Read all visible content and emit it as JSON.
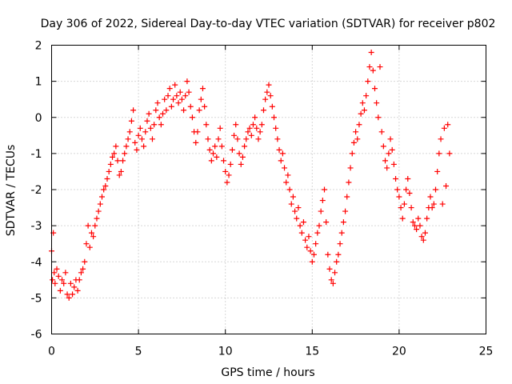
{
  "chart_data": {
    "type": "scatter",
    "title": "Day 306 of 2022, Sidereal Day-to-day VTEC variation (SDTVAR) for receiver p802",
    "xlabel": "GPS time / hours",
    "ylabel": "SDTVAR / TECUs",
    "xlim": [
      0,
      25
    ],
    "ylim": [
      -6,
      2
    ],
    "xticks": [
      "0",
      "5",
      "10",
      "15",
      "20",
      "25"
    ],
    "yticks": [
      "-6",
      "-5",
      "-4",
      "-3",
      "-2",
      "-1",
      "0",
      "1",
      "2"
    ],
    "grid": true,
    "marker": "+",
    "color": "#ff0000",
    "series": [
      {
        "name": "p802",
        "points": [
          [
            0.0,
            -3.7
          ],
          [
            0.05,
            -4.5
          ],
          [
            0.1,
            -3.2
          ],
          [
            0.15,
            -4.3
          ],
          [
            0.2,
            -4.6
          ],
          [
            0.3,
            -4.2
          ],
          [
            0.4,
            -4.4
          ],
          [
            0.5,
            -4.8
          ],
          [
            0.6,
            -4.5
          ],
          [
            0.7,
            -4.6
          ],
          [
            0.8,
            -4.3
          ],
          [
            0.9,
            -4.9
          ],
          [
            1.0,
            -5.0
          ],
          [
            1.1,
            -4.6
          ],
          [
            1.2,
            -4.9
          ],
          [
            1.3,
            -4.7
          ],
          [
            1.4,
            -4.5
          ],
          [
            1.5,
            -4.8
          ],
          [
            1.6,
            -4.5
          ],
          [
            1.7,
            -4.3
          ],
          [
            1.8,
            -4.2
          ],
          [
            1.9,
            -4.0
          ],
          [
            2.0,
            -3.5
          ],
          [
            2.1,
            -3.0
          ],
          [
            2.2,
            -3.6
          ],
          [
            2.3,
            -3.2
          ],
          [
            2.4,
            -3.3
          ],
          [
            2.5,
            -3.0
          ],
          [
            2.6,
            -2.8
          ],
          [
            2.7,
            -2.6
          ],
          [
            2.8,
            -2.4
          ],
          [
            2.9,
            -2.2
          ],
          [
            3.0,
            -2.0
          ],
          [
            3.1,
            -1.9
          ],
          [
            3.2,
            -1.7
          ],
          [
            3.3,
            -1.5
          ],
          [
            3.4,
            -1.3
          ],
          [
            3.5,
            -1.1
          ],
          [
            3.6,
            -1.0
          ],
          [
            3.7,
            -0.8
          ],
          [
            3.8,
            -1.2
          ],
          [
            3.9,
            -1.6
          ],
          [
            4.0,
            -1.5
          ],
          [
            4.1,
            -1.2
          ],
          [
            4.2,
            -1.0
          ],
          [
            4.3,
            -0.8
          ],
          [
            4.4,
            -0.6
          ],
          [
            4.5,
            -0.4
          ],
          [
            4.6,
            -0.1
          ],
          [
            4.7,
            0.2
          ],
          [
            4.8,
            -0.7
          ],
          [
            4.9,
            -0.9
          ],
          [
            5.0,
            -0.5
          ],
          [
            5.1,
            -0.3
          ],
          [
            5.2,
            -0.6
          ],
          [
            5.3,
            -0.8
          ],
          [
            5.4,
            -0.4
          ],
          [
            5.5,
            -0.1
          ],
          [
            5.6,
            0.1
          ],
          [
            5.7,
            -0.3
          ],
          [
            5.8,
            -0.6
          ],
          [
            5.9,
            -0.2
          ],
          [
            6.0,
            0.2
          ],
          [
            6.1,
            0.4
          ],
          [
            6.2,
            0.0
          ],
          [
            6.3,
            -0.2
          ],
          [
            6.4,
            0.1
          ],
          [
            6.5,
            0.5
          ],
          [
            6.6,
            0.2
          ],
          [
            6.7,
            0.6
          ],
          [
            6.8,
            0.8
          ],
          [
            6.9,
            0.3
          ],
          [
            7.0,
            0.5
          ],
          [
            7.1,
            0.9
          ],
          [
            7.2,
            0.6
          ],
          [
            7.3,
            0.4
          ],
          [
            7.4,
            0.7
          ],
          [
            7.5,
            0.5
          ],
          [
            7.6,
            0.2
          ],
          [
            7.7,
            0.6
          ],
          [
            7.8,
            1.0
          ],
          [
            7.9,
            0.7
          ],
          [
            8.0,
            0.3
          ],
          [
            8.1,
            0.0
          ],
          [
            8.2,
            -0.4
          ],
          [
            8.3,
            -0.7
          ],
          [
            8.4,
            -0.4
          ],
          [
            8.5,
            0.2
          ],
          [
            8.6,
            0.5
          ],
          [
            8.7,
            0.8
          ],
          [
            8.8,
            0.3
          ],
          [
            8.9,
            -0.2
          ],
          [
            9.0,
            -0.6
          ],
          [
            9.1,
            -0.9
          ],
          [
            9.2,
            -1.2
          ],
          [
            9.3,
            -1.0
          ],
          [
            9.4,
            -0.8
          ],
          [
            9.5,
            -1.1
          ],
          [
            9.6,
            -0.6
          ],
          [
            9.7,
            -0.3
          ],
          [
            9.8,
            -0.8
          ],
          [
            9.9,
            -1.2
          ],
          [
            10.0,
            -1.5
          ],
          [
            10.1,
            -1.8
          ],
          [
            10.2,
            -1.6
          ],
          [
            10.3,
            -1.3
          ],
          [
            10.4,
            -0.9
          ],
          [
            10.5,
            -0.5
          ],
          [
            10.6,
            -0.2
          ],
          [
            10.7,
            -0.6
          ],
          [
            10.8,
            -1.0
          ],
          [
            10.9,
            -1.3
          ],
          [
            11.0,
            -1.1
          ],
          [
            11.1,
            -0.8
          ],
          [
            11.2,
            -0.6
          ],
          [
            11.3,
            -0.4
          ],
          [
            11.4,
            -0.3
          ],
          [
            11.5,
            -0.5
          ],
          [
            11.6,
            -0.2
          ],
          [
            11.7,
            0.0
          ],
          [
            11.8,
            -0.3
          ],
          [
            11.9,
            -0.6
          ],
          [
            12.0,
            -0.4
          ],
          [
            12.1,
            -0.2
          ],
          [
            12.2,
            0.2
          ],
          [
            12.3,
            0.5
          ],
          [
            12.4,
            0.7
          ],
          [
            12.5,
            0.9
          ],
          [
            12.6,
            0.6
          ],
          [
            12.7,
            0.3
          ],
          [
            12.8,
            0.0
          ],
          [
            12.9,
            -0.3
          ],
          [
            13.0,
            -0.6
          ],
          [
            13.1,
            -0.9
          ],
          [
            13.2,
            -1.2
          ],
          [
            13.3,
            -1.0
          ],
          [
            13.4,
            -1.4
          ],
          [
            13.5,
            -1.8
          ],
          [
            13.6,
            -1.6
          ],
          [
            13.7,
            -2.0
          ],
          [
            13.8,
            -2.4
          ],
          [
            13.9,
            -2.2
          ],
          [
            14.0,
            -2.6
          ],
          [
            14.1,
            -2.8
          ],
          [
            14.2,
            -2.5
          ],
          [
            14.3,
            -3.0
          ],
          [
            14.4,
            -3.2
          ],
          [
            14.5,
            -2.9
          ],
          [
            14.6,
            -3.4
          ],
          [
            14.7,
            -3.6
          ],
          [
            14.8,
            -3.3
          ],
          [
            14.9,
            -3.7
          ],
          [
            15.0,
            -4.0
          ],
          [
            15.1,
            -3.8
          ],
          [
            15.2,
            -3.5
          ],
          [
            15.3,
            -3.2
          ],
          [
            15.4,
            -3.0
          ],
          [
            15.5,
            -2.6
          ],
          [
            15.6,
            -2.3
          ],
          [
            15.7,
            -2.0
          ],
          [
            15.8,
            -2.9
          ],
          [
            15.9,
            -3.8
          ],
          [
            16.0,
            -4.2
          ],
          [
            16.1,
            -4.5
          ],
          [
            16.2,
            -4.6
          ],
          [
            16.3,
            -4.3
          ],
          [
            16.4,
            -4.0
          ],
          [
            16.5,
            -3.8
          ],
          [
            16.6,
            -3.5
          ],
          [
            16.7,
            -3.2
          ],
          [
            16.8,
            -2.9
          ],
          [
            16.9,
            -2.6
          ],
          [
            17.0,
            -2.2
          ],
          [
            17.1,
            -1.8
          ],
          [
            17.2,
            -1.4
          ],
          [
            17.3,
            -1.0
          ],
          [
            17.4,
            -0.7
          ],
          [
            17.5,
            -0.4
          ],
          [
            17.6,
            -0.6
          ],
          [
            17.7,
            -0.2
          ],
          [
            17.8,
            0.1
          ],
          [
            17.9,
            0.4
          ],
          [
            18.0,
            0.2
          ],
          [
            18.1,
            0.6
          ],
          [
            18.2,
            1.0
          ],
          [
            18.3,
            1.4
          ],
          [
            18.4,
            1.8
          ],
          [
            18.5,
            1.3
          ],
          [
            18.6,
            0.8
          ],
          [
            18.7,
            0.4
          ],
          [
            18.8,
            0.0
          ],
          [
            18.9,
            1.4
          ],
          [
            19.0,
            -0.4
          ],
          [
            19.1,
            -0.8
          ],
          [
            19.2,
            -1.2
          ],
          [
            19.3,
            -1.4
          ],
          [
            19.4,
            -1.0
          ],
          [
            19.5,
            -0.6
          ],
          [
            19.6,
            -0.9
          ],
          [
            19.7,
            -1.3
          ],
          [
            19.8,
            -1.7
          ],
          [
            19.9,
            -2.0
          ],
          [
            20.0,
            -2.2
          ],
          [
            20.1,
            -2.5
          ],
          [
            20.2,
            -2.8
          ],
          [
            20.3,
            -2.4
          ],
          [
            20.4,
            -2.0
          ],
          [
            20.5,
            -1.7
          ],
          [
            20.6,
            -2.1
          ],
          [
            20.7,
            -2.5
          ],
          [
            20.8,
            -2.9
          ],
          [
            20.9,
            -3.0
          ],
          [
            21.0,
            -3.1
          ],
          [
            21.1,
            -2.8
          ],
          [
            21.2,
            -3.0
          ],
          [
            21.3,
            -3.3
          ],
          [
            21.4,
            -3.4
          ],
          [
            21.5,
            -3.2
          ],
          [
            21.6,
            -2.8
          ],
          [
            21.7,
            -2.5
          ],
          [
            21.8,
            -2.2
          ],
          [
            21.9,
            -2.5
          ],
          [
            22.0,
            -2.4
          ],
          [
            22.1,
            -2.0
          ],
          [
            22.2,
            -1.5
          ],
          [
            22.3,
            -1.0
          ],
          [
            22.4,
            -0.6
          ],
          [
            22.5,
            -2.4
          ],
          [
            22.6,
            -0.3
          ],
          [
            22.7,
            -1.9
          ],
          [
            22.8,
            -0.2
          ],
          [
            22.9,
            -1.0
          ]
        ]
      }
    ]
  }
}
